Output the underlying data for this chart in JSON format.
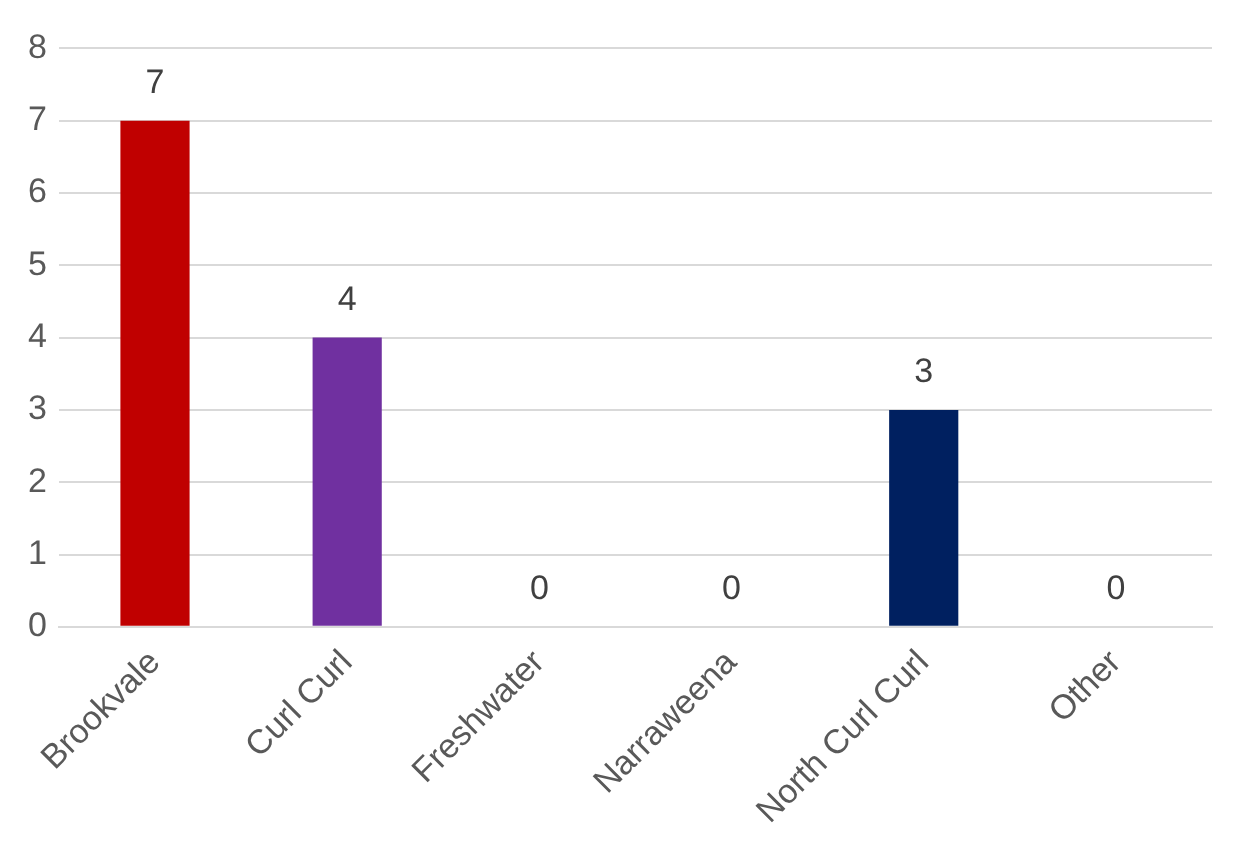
{
  "chart_data": {
    "type": "bar",
    "categories": [
      "Brookvale",
      "Curl Curl",
      "Freshwater",
      "Narraweena",
      "North Curl Curl",
      "Other"
    ],
    "values": [
      7,
      4,
      0,
      0,
      3,
      0
    ],
    "colors": [
      "#c00000",
      "#7030a0",
      "#4472c4",
      "#ed7d31",
      "#002060",
      "#a5a5a5"
    ],
    "ylim": [
      0,
      8
    ],
    "yticks": [
      0,
      1,
      2,
      3,
      4,
      5,
      6,
      7,
      8
    ],
    "grid": "y",
    "data_labels": true,
    "legend": false
  }
}
